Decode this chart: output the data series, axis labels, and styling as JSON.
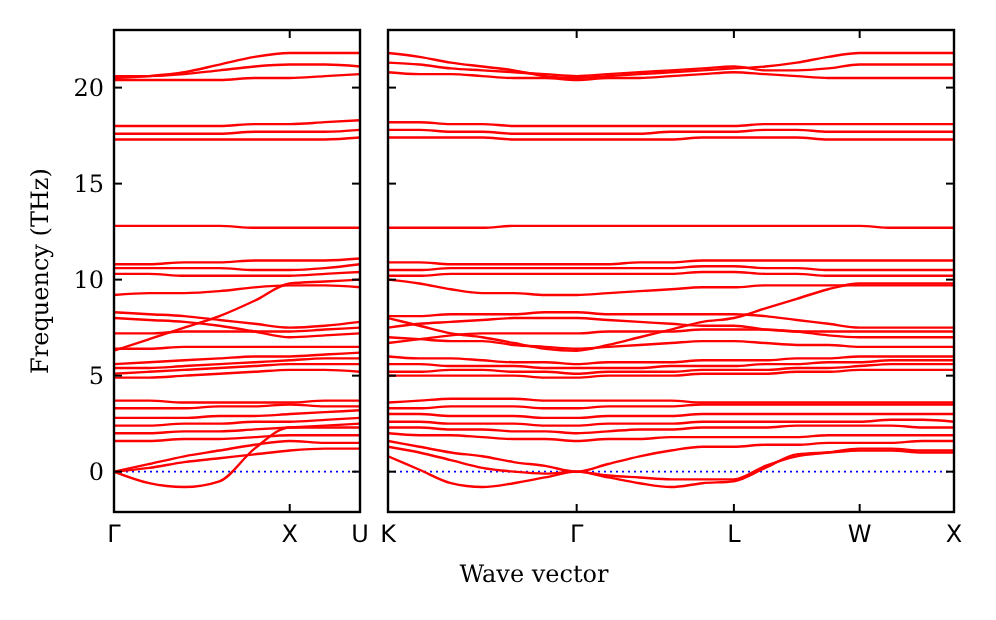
{
  "chart_data": [
    {
      "type": "line",
      "ylabel": "Frequency (THz)",
      "categories": [
        "Γ",
        null,
        null,
        null,
        null,
        "X",
        null,
        "U"
      ],
      "ylim": [
        -2.1,
        23
      ],
      "yticks": [
        0,
        5,
        10,
        15,
        20
      ],
      "grid": false,
      "marker": "none",
      "line_style": "solid",
      "ref_lines": [
        {
          "axis": "y",
          "value": 0,
          "label": null,
          "color": "#0000ff",
          "line_style": "dotted"
        }
      ],
      "series": [
        {
          "color": "#ff0000",
          "values": [
            0,
            -0.6,
            -0.8,
            -0.5,
            1.2,
            2.3,
            2.3,
            2.3
          ]
        },
        {
          "color": "#ff0000",
          "values": [
            0,
            0.2,
            0.5,
            0.7,
            0.9,
            1.1,
            1.2,
            1.2
          ]
        },
        {
          "color": "#ff0000",
          "values": [
            0,
            0.4,
            0.8,
            1.1,
            1.4,
            1.6,
            1.5,
            1.5
          ]
        },
        {
          "color": "#ff0000",
          "values": [
            1.6,
            1.6,
            1.7,
            1.7,
            1.8,
            1.9,
            1.9,
            1.9
          ]
        },
        {
          "color": "#ff0000",
          "values": [
            2.0,
            2.0,
            2.1,
            2.1,
            2.2,
            2.3,
            2.4,
            2.5
          ]
        },
        {
          "color": "#ff0000",
          "values": [
            2.4,
            2.4,
            2.5,
            2.5,
            2.6,
            2.6,
            2.7,
            2.8
          ]
        },
        {
          "color": "#ff0000",
          "values": [
            2.8,
            2.8,
            2.8,
            2.9,
            2.9,
            3.0,
            3.1,
            3.2
          ]
        },
        {
          "color": "#ff0000",
          "values": [
            3.3,
            3.3,
            3.3,
            3.4,
            3.4,
            3.5,
            3.4,
            3.4
          ]
        },
        {
          "color": "#ff0000",
          "values": [
            3.7,
            3.7,
            3.6,
            3.6,
            3.6,
            3.6,
            3.7,
            3.7
          ]
        },
        {
          "color": "#ff0000",
          "values": [
            4.9,
            4.9,
            5.0,
            5.1,
            5.2,
            5.3,
            5.3,
            5.2
          ]
        },
        {
          "color": "#ff0000",
          "values": [
            5.1,
            5.2,
            5.3,
            5.4,
            5.5,
            5.6,
            5.6,
            5.6
          ]
        },
        {
          "color": "#ff0000",
          "values": [
            5.4,
            5.4,
            5.5,
            5.6,
            5.7,
            5.8,
            5.9,
            5.9
          ]
        },
        {
          "color": "#ff0000",
          "values": [
            5.6,
            5.7,
            5.8,
            5.9,
            6.0,
            6.0,
            6.1,
            6.2
          ]
        },
        {
          "color": "#ff0000",
          "values": [
            6.4,
            6.4,
            6.5,
            6.5,
            6.5,
            6.5,
            6.5,
            6.5
          ]
        },
        {
          "color": "#ff0000",
          "values": [
            6.3,
            6.9,
            7.5,
            8.1,
            8.9,
            9.8,
            9.9,
            10.0
          ]
        },
        {
          "color": "#ff0000",
          "values": [
            7.2,
            7.2,
            7.3,
            7.3,
            7.3,
            7.3,
            7.4,
            7.5
          ]
        },
        {
          "color": "#ff0000",
          "values": [
            8.0,
            7.9,
            7.8,
            7.6,
            7.3,
            7.0,
            7.1,
            7.2
          ]
        },
        {
          "color": "#ff0000",
          "values": [
            8.3,
            8.2,
            8.1,
            7.9,
            7.7,
            7.5,
            7.6,
            7.8
          ]
        },
        {
          "color": "#ff0000",
          "values": [
            9.2,
            9.3,
            9.3,
            9.4,
            9.6,
            9.7,
            9.7,
            9.6
          ]
        },
        {
          "color": "#ff0000",
          "values": [
            10.3,
            10.3,
            10.2,
            10.2,
            10.2,
            10.2,
            10.3,
            10.4
          ]
        },
        {
          "color": "#ff0000",
          "values": [
            10.6,
            10.6,
            10.6,
            10.6,
            10.5,
            10.5,
            10.6,
            10.8
          ]
        },
        {
          "color": "#ff0000",
          "values": [
            10.8,
            10.8,
            10.9,
            10.9,
            11.0,
            11.0,
            11.0,
            11.1
          ]
        },
        {
          "color": "#ff0000",
          "values": [
            12.8,
            12.8,
            12.8,
            12.8,
            12.7,
            12.7,
            12.7,
            12.7
          ]
        },
        {
          "color": "#ff0000",
          "values": [
            17.3,
            17.3,
            17.3,
            17.3,
            17.3,
            17.3,
            17.3,
            17.4
          ]
        },
        {
          "color": "#ff0000",
          "values": [
            17.6,
            17.6,
            17.6,
            17.6,
            17.7,
            17.7,
            17.7,
            17.8
          ]
        },
        {
          "color": "#ff0000",
          "values": [
            18.0,
            18.0,
            18.0,
            18.0,
            18.1,
            18.1,
            18.2,
            18.3
          ]
        },
        {
          "color": "#ff0000",
          "values": [
            20.5,
            20.6,
            20.8,
            21.2,
            21.6,
            21.8,
            21.8,
            21.8
          ]
        },
        {
          "color": "#ff0000",
          "values": [
            20.6,
            20.6,
            20.7,
            20.9,
            21.1,
            21.2,
            21.2,
            21.1
          ]
        },
        {
          "color": "#ff0000",
          "values": [
            20.4,
            20.4,
            20.4,
            20.4,
            20.5,
            20.5,
            20.6,
            20.7
          ]
        }
      ]
    },
    {
      "type": "line",
      "xlabel": "Wave vector",
      "categories": [
        "K",
        null,
        null,
        null,
        null,
        null,
        "Γ",
        null,
        null,
        null,
        null,
        "L",
        null,
        null,
        null,
        "W",
        null,
        null,
        "X"
      ],
      "ylim": [
        -2.1,
        23
      ],
      "yticks": [
        0,
        5,
        10,
        15,
        20
      ],
      "tick_labels": "x",
      "grid": false,
      "marker": "none",
      "line_style": "solid",
      "ref_lines": [
        {
          "axis": "y",
          "value": 0,
          "label": null,
          "color": "#0000ff",
          "line_style": "dotted"
        }
      ],
      "series": [
        {
          "color": "#ff0000",
          "values": [
            0.8,
            0.1,
            -0.6,
            -0.8,
            -0.6,
            -0.3,
            0,
            -0.3,
            -0.6,
            -0.8,
            -0.6,
            -0.5,
            0.2,
            0.9,
            1.0,
            1.1,
            1.1,
            1.0,
            1.0
          ]
        },
        {
          "color": "#ff0000",
          "values": [
            1.3,
            1.0,
            0.6,
            0.2,
            0.0,
            -0.1,
            0,
            -0.2,
            -0.3,
            -0.4,
            -0.4,
            -0.4,
            0.3,
            0.8,
            1.0,
            1.2,
            1.2,
            1.1,
            1.1
          ]
        },
        {
          "color": "#ff0000",
          "values": [
            1.6,
            1.3,
            1.0,
            0.8,
            0.5,
            0.3,
            0,
            0.4,
            0.8,
            1.1,
            1.3,
            1.3,
            1.4,
            1.4,
            1.5,
            1.5,
            1.5,
            1.6,
            1.6
          ]
        },
        {
          "color": "#ff0000",
          "values": [
            2.0,
            1.9,
            1.9,
            1.8,
            1.7,
            1.7,
            1.6,
            1.7,
            1.7,
            1.8,
            1.8,
            1.8,
            1.8,
            1.8,
            1.9,
            1.9,
            1.9,
            1.9,
            1.9
          ]
        },
        {
          "color": "#ff0000",
          "values": [
            2.3,
            2.3,
            2.2,
            2.2,
            2.1,
            2.1,
            2.0,
            2.1,
            2.2,
            2.2,
            2.3,
            2.3,
            2.3,
            2.4,
            2.4,
            2.4,
            2.4,
            2.3,
            2.3
          ]
        },
        {
          "color": "#ff0000",
          "values": [
            2.6,
            2.6,
            2.5,
            2.5,
            2.5,
            2.4,
            2.4,
            2.5,
            2.5,
            2.5,
            2.6,
            2.6,
            2.6,
            2.6,
            2.6,
            2.6,
            2.7,
            2.7,
            2.6
          ]
        },
        {
          "color": "#ff0000",
          "values": [
            3.0,
            3.0,
            2.9,
            2.9,
            2.9,
            2.8,
            2.8,
            2.9,
            2.9,
            2.9,
            3.0,
            3.0,
            3.0,
            3.0,
            3.0,
            3.0,
            3.0,
            3.0,
            3.0
          ]
        },
        {
          "color": "#ff0000",
          "values": [
            3.3,
            3.3,
            3.4,
            3.4,
            3.4,
            3.3,
            3.3,
            3.4,
            3.4,
            3.4,
            3.5,
            3.5,
            3.5,
            3.5,
            3.5,
            3.5,
            3.5,
            3.5,
            3.5
          ]
        },
        {
          "color": "#ff0000",
          "values": [
            3.6,
            3.7,
            3.8,
            3.8,
            3.8,
            3.7,
            3.7,
            3.7,
            3.7,
            3.7,
            3.6,
            3.6,
            3.6,
            3.6,
            3.6,
            3.6,
            3.6,
            3.6,
            3.6
          ]
        },
        {
          "color": "#ff0000",
          "values": [
            5.0,
            5.0,
            5.0,
            5.0,
            5.0,
            4.9,
            4.9,
            5.0,
            5.0,
            5.0,
            5.1,
            5.1,
            5.1,
            5.2,
            5.2,
            5.3,
            5.3,
            5.3,
            5.3
          ]
        },
        {
          "color": "#ff0000",
          "values": [
            5.2,
            5.2,
            5.3,
            5.3,
            5.2,
            5.2,
            5.1,
            5.2,
            5.2,
            5.2,
            5.3,
            5.3,
            5.3,
            5.4,
            5.4,
            5.5,
            5.6,
            5.6,
            5.6
          ]
        },
        {
          "color": "#ff0000",
          "values": [
            5.6,
            5.6,
            5.5,
            5.5,
            5.5,
            5.4,
            5.4,
            5.4,
            5.4,
            5.5,
            5.5,
            5.5,
            5.6,
            5.6,
            5.7,
            5.7,
            5.8,
            5.8,
            5.8
          ]
        },
        {
          "color": "#ff0000",
          "values": [
            6.0,
            5.9,
            5.9,
            5.8,
            5.7,
            5.7,
            5.6,
            5.7,
            5.7,
            5.7,
            5.8,
            5.8,
            5.8,
            5.9,
            5.9,
            6.0,
            6.0,
            6.0,
            6.0
          ]
        },
        {
          "color": "#ff0000",
          "values": [
            7.0,
            6.9,
            6.8,
            6.8,
            6.6,
            6.5,
            6.4,
            6.5,
            6.6,
            6.7,
            6.8,
            6.8,
            6.7,
            6.6,
            6.6,
            6.5,
            6.5,
            6.5,
            6.5
          ]
        },
        {
          "color": "#ff0000",
          "values": [
            8.0,
            7.6,
            7.2,
            7.0,
            6.7,
            6.4,
            6.3,
            6.6,
            7.0,
            7.4,
            7.8,
            8.0,
            8.5,
            9.0,
            9.5,
            9.8,
            9.8,
            9.8,
            9.8
          ]
        },
        {
          "color": "#ff0000",
          "values": [
            6.7,
            6.9,
            7.1,
            7.2,
            7.2,
            7.2,
            7.2,
            7.3,
            7.3,
            7.3,
            7.4,
            7.4,
            7.4,
            7.3,
            7.3,
            7.3,
            7.3,
            7.3,
            7.3
          ]
        },
        {
          "color": "#ff0000",
          "values": [
            7.5,
            7.7,
            7.8,
            7.9,
            8.0,
            8.0,
            8.0,
            7.9,
            7.8,
            7.7,
            7.6,
            7.6,
            7.4,
            7.3,
            7.1,
            7.0,
            7.0,
            7.0,
            7.0
          ]
        },
        {
          "color": "#ff0000",
          "values": [
            8.1,
            8.1,
            8.2,
            8.2,
            8.2,
            8.3,
            8.3,
            8.2,
            8.2,
            8.2,
            8.2,
            8.2,
            8.1,
            7.9,
            7.7,
            7.5,
            7.5,
            7.5,
            7.5
          ]
        },
        {
          "color": "#ff0000",
          "values": [
            10.0,
            9.8,
            9.5,
            9.3,
            9.3,
            9.2,
            9.2,
            9.3,
            9.4,
            9.5,
            9.6,
            9.6,
            9.7,
            9.7,
            9.7,
            9.7,
            9.7,
            9.7,
            9.7
          ]
        },
        {
          "color": "#ff0000",
          "values": [
            10.2,
            10.2,
            10.3,
            10.3,
            10.3,
            10.3,
            10.3,
            10.3,
            10.3,
            10.3,
            10.4,
            10.4,
            10.3,
            10.3,
            10.2,
            10.2,
            10.2,
            10.2,
            10.2
          ]
        },
        {
          "color": "#ff0000",
          "values": [
            10.5,
            10.5,
            10.6,
            10.6,
            10.6,
            10.6,
            10.6,
            10.6,
            10.6,
            10.6,
            10.7,
            10.7,
            10.6,
            10.6,
            10.5,
            10.5,
            10.5,
            10.5,
            10.5
          ]
        },
        {
          "color": "#ff0000",
          "values": [
            10.9,
            10.9,
            10.8,
            10.8,
            10.8,
            10.8,
            10.8,
            10.8,
            10.9,
            10.9,
            11.0,
            11.0,
            11.0,
            11.0,
            11.0,
            11.0,
            11.0,
            11.0,
            11.0
          ]
        },
        {
          "color": "#ff0000",
          "values": [
            12.7,
            12.7,
            12.7,
            12.7,
            12.8,
            12.8,
            12.8,
            12.8,
            12.8,
            12.8,
            12.8,
            12.8,
            12.8,
            12.8,
            12.8,
            12.8,
            12.7,
            12.7,
            12.7
          ]
        },
        {
          "color": "#ff0000",
          "values": [
            17.4,
            17.4,
            17.4,
            17.4,
            17.3,
            17.3,
            17.3,
            17.3,
            17.3,
            17.3,
            17.4,
            17.4,
            17.4,
            17.4,
            17.3,
            17.3,
            17.3,
            17.3,
            17.3
          ]
        },
        {
          "color": "#ff0000",
          "values": [
            17.8,
            17.8,
            17.7,
            17.7,
            17.6,
            17.6,
            17.6,
            17.6,
            17.6,
            17.7,
            17.7,
            17.7,
            17.8,
            17.8,
            17.7,
            17.7,
            17.7,
            17.7,
            17.7
          ]
        },
        {
          "color": "#ff0000",
          "values": [
            18.2,
            18.2,
            18.1,
            18.1,
            18.0,
            18.0,
            18.0,
            18.0,
            18.0,
            18.0,
            18.0,
            18.0,
            18.1,
            18.1,
            18.1,
            18.1,
            18.1,
            18.1,
            18.1
          ]
        },
        {
          "color": "#ff0000",
          "values": [
            21.8,
            21.6,
            21.3,
            21.1,
            20.9,
            20.6,
            20.5,
            20.6,
            20.7,
            20.8,
            20.9,
            21.0,
            21.1,
            21.3,
            21.6,
            21.8,
            21.8,
            21.8,
            21.8
          ]
        },
        {
          "color": "#ff0000",
          "values": [
            21.3,
            21.2,
            21.0,
            20.9,
            20.8,
            20.7,
            20.6,
            20.7,
            20.8,
            20.9,
            21.0,
            21.1,
            20.9,
            20.9,
            21.0,
            21.2,
            21.2,
            21.2,
            21.2
          ]
        },
        {
          "color": "#ff0000",
          "values": [
            20.8,
            20.7,
            20.7,
            20.6,
            20.5,
            20.5,
            20.4,
            20.5,
            20.5,
            20.6,
            20.7,
            20.8,
            20.7,
            20.6,
            20.5,
            20.5,
            20.5,
            20.5,
            20.5
          ]
        }
      ]
    }
  ]
}
